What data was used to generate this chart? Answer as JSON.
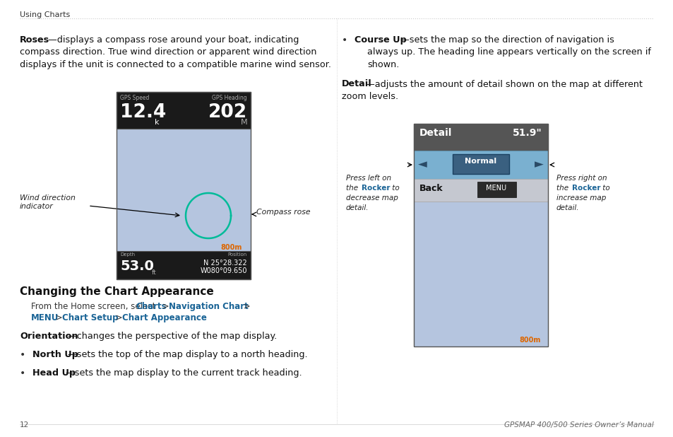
{
  "bg_color": "#ffffff",
  "header_text": "Using Charts",
  "page_num": "12",
  "footer_text": "GPSMAP 400/500 Series Owner’s Manual",
  "section_link_color": "#1a6496",
  "p1_bold": "Roses",
  "p1_line1": "—displays a compass rose around your boat, indicating",
  "p1_line2": "compass direction. True wind direction or apparent wind direction",
  "p1_line3": "displays if the unit is connected to a compatible marine wind sensor.",
  "bullet1_bold": "Course Up",
  "bullet1_line1": "—sets the map so the direction of navigation is",
  "bullet1_line2": "always up. The heading line appears vertically on the screen if",
  "bullet1_line3": "shown.",
  "p2_bold": "Detail",
  "p2_line1": "—adjusts the amount of detail shown on the map at different",
  "p2_line2": "zoom levels.",
  "section_title": "Changing the Chart Appearance",
  "p3_bold": "Orientation",
  "p3_rest": "—changes the perspective of the map display.",
  "bullet2_bold": "North Up",
  "bullet2_rest": "—sets the top of the map display to a north heading.",
  "bullet3_bold": "Head Up",
  "bullet3_rest": "—sets the map display to the current track heading.",
  "gps_speed_label": "GPS Speed",
  "gps_speed_val": "12.4",
  "gps_speed_sub": "k",
  "gps_heading_label": "GPS Heading",
  "gps_heading_val": "202",
  "gps_heading_sub": "M",
  "depth_label": "Depth",
  "depth_val": "53.0",
  "depth_sub": "ft",
  "pos_label": "Position",
  "pos_val1": "N 25°28.322",
  "pos_val2": "W080°09.650",
  "dist_800m": "800m",
  "detail_label": "Detail",
  "detail_val": "51.9\"",
  "normal_label": "Normal",
  "back_label": "Back",
  "menu_label": "MENU",
  "label_wind_line1": "Wind direction",
  "label_wind_line2": "indicator",
  "label_compass": "Compass rose",
  "press_left_1": "Press left on",
  "press_left_2": "the ",
  "press_left_rocker": "Rocker",
  "press_left_3": " to",
  "press_left_4": "decrease map",
  "press_left_5": "detail.",
  "press_right_1": "Press right on",
  "press_right_2": "the ",
  "press_right_rocker": "Rocker",
  "press_right_3": " to",
  "press_right_4": "increase map",
  "press_right_5": "detail.",
  "from_home_1": "From the Home screen, select ",
  "from_home_charts": "Charts",
  "from_home_2": " > ",
  "from_home_nav": "Navigation Chart",
  "from_home_3": " >",
  "from_home_menu": "MENU",
  "from_home_4": " > ",
  "from_home_setup": "Chart Setup",
  "from_home_5": " > ",
  "from_home_appear": "Chart Appearance",
  "from_home_6": "."
}
